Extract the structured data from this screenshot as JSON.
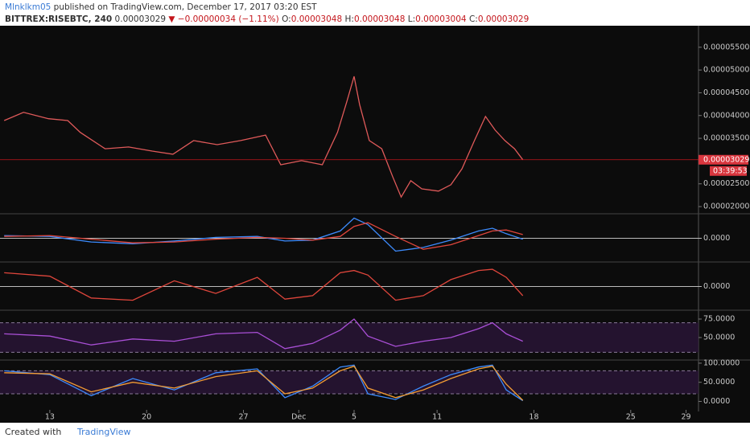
{
  "header": {
    "author": "Mlnklkm05",
    "published": "published on TradingView.com, December 17, 2017 03:20 EST",
    "symbol": "BITTREX:RISEBTC, 240",
    "price": "0.00003029",
    "change": "▼ −0.00000034 (−1.11%)",
    "ohlc": [
      {
        "label": "O:",
        "value": "0.00003048"
      },
      {
        "label": "H:",
        "value": "0.00003048"
      },
      {
        "label": "L:",
        "value": "0.00003004"
      },
      {
        "label": "C:",
        "value": "0.00003029"
      }
    ]
  },
  "chart_data": [
    {
      "type": "line",
      "color": "#e05a5a",
      "x": [
        -3.3,
        -1.9,
        -0.1,
        1.3,
        2.2,
        4.0,
        5.7,
        7.4,
        8.9,
        10.4,
        12.1,
        13.8,
        15.6,
        16.7,
        18.2,
        19.7,
        20.8,
        21.5,
        22.0,
        22.4,
        23.1,
        24.0,
        24.8,
        25.4,
        26.1,
        26.9,
        28.1,
        29.0,
        29.8,
        30.7,
        31.5,
        32.2,
        32.9,
        33.6,
        34.2
      ],
      "series": [
        {
          "color": "#e05a5a",
          "values": [
            3.89e-05,
            4.07e-05,
            3.93e-05,
            3.89e-05,
            3.63e-05,
            3.27e-05,
            3.31e-05,
            3.22e-05,
            3.15e-05,
            3.45e-05,
            3.36e-05,
            3.45e-05,
            3.57e-05,
            2.92e-05,
            3.01e-05,
            2.92e-05,
            3.63e-05,
            4.33e-05,
            4.86e-05,
            4.24e-05,
            3.45e-05,
            3.27e-05,
            2.65e-05,
            2.21e-05,
            2.57e-05,
            2.39e-05,
            2.34e-05,
            2.48e-05,
            2.83e-05,
            3.45e-05,
            3.98e-05,
            3.68e-05,
            3.45e-05,
            3.27e-05,
            3.029e-05
          ]
        }
      ],
      "last_price": {
        "value": 3.029e-05,
        "label": "0.00003029"
      },
      "timer": "03:39:53",
      "xlim": [
        -3.6,
        46.9
      ],
      "ylim": [
        1.86e-05,
        5.92e-05
      ],
      "xticks": [
        {
          "value": 0,
          "label": "13"
        },
        {
          "value": 7,
          "label": "20"
        },
        {
          "value": 14,
          "label": "27"
        },
        {
          "value": 18,
          "label": "Dec"
        },
        {
          "value": 22,
          "label": "5"
        },
        {
          "value": 28,
          "label": "11"
        },
        {
          "value": 35,
          "label": "18"
        },
        {
          "value": 42,
          "label": "25"
        },
        {
          "value": 46,
          "label": "29"
        }
      ],
      "yticks": [
        {
          "value": 2e-05,
          "label": "0.00002000"
        },
        {
          "value": 2.5e-05,
          "label": "0.00002500"
        },
        {
          "value": 3.5e-05,
          "label": "0.00003500"
        },
        {
          "value": 4e-05,
          "label": "0.00004000"
        },
        {
          "value": 4.5e-05,
          "label": "0.00004500"
        },
        {
          "value": 5e-05,
          "label": "0.00005000"
        },
        {
          "value": 5.5e-05,
          "label": "0.00005500"
        }
      ]
    },
    {
      "type": "line",
      "x": [
        -3.3,
        0,
        3,
        6,
        9,
        12,
        15,
        17,
        19,
        21,
        22,
        23,
        25,
        27,
        29,
        31,
        32,
        33,
        34.2
      ],
      "series": [
        {
          "color": "#3d8bfd",
          "values": [
            3e-07,
            2e-07,
            -4e-07,
            -6e-07,
            -3e-07,
            1e-07,
            2e-07,
            -3e-07,
            -2e-07,
            8e-07,
            2.2e-06,
            1.5e-06,
            -1.4e-06,
            -1e-06,
            -2e-07,
            8e-07,
            1.1e-06,
            5e-07,
            -1e-07
          ]
        },
        {
          "color": "#e0463c",
          "values": [
            2e-07,
            3e-07,
            -1e-07,
            -5e-07,
            -4e-07,
            -1e-07,
            1e-07,
            0,
            -2e-07,
            2e-07,
            1.3e-06,
            1.7e-06,
            2e-07,
            -1.2e-06,
            -7e-07,
            3e-07,
            8e-07,
            9e-07,
            4e-07
          ]
        }
      ],
      "ylim": [
        -2.5e-06,
        2.5e-06
      ],
      "yticks": [
        {
          "value": 0,
          "label": "0.0000"
        }
      ]
    },
    {
      "type": "line",
      "x": [
        -3.3,
        0,
        3,
        6,
        9,
        12,
        15,
        17,
        19,
        21,
        22,
        23,
        25,
        27,
        29,
        31,
        32,
        33,
        34.2
      ],
      "series": [
        {
          "color": "#e0463c",
          "values": [
            1.2e-06,
            9e-07,
            -1e-06,
            -1.2e-06,
            5e-07,
            -6e-07,
            8e-07,
            -1.1e-06,
            -8e-07,
            1.2e-06,
            1.4e-06,
            1e-06,
            -1.2e-06,
            -8e-07,
            6e-07,
            1.4e-06,
            1.5e-06,
            8e-07,
            -8e-07
          ]
        }
      ],
      "ylim": [
        -2e-06,
        2e-06
      ],
      "yticks": [
        {
          "value": 0,
          "label": "0.0000"
        }
      ]
    },
    {
      "type": "line",
      "x": [
        -3.3,
        0,
        3,
        6,
        9,
        12,
        15,
        17,
        19,
        21,
        22,
        23,
        25,
        27,
        29,
        31,
        32,
        33,
        34.2
      ],
      "series": [
        {
          "color": "#a94fd6",
          "values": [
            55,
            52,
            40,
            48,
            45,
            55,
            57,
            35,
            42,
            60,
            75,
            52,
            38,
            45,
            50,
            62,
            70,
            55,
            45
          ]
        }
      ],
      "bands": [
        30,
        70
      ],
      "ylim": [
        22.8,
        84.8
      ],
      "yticks": [
        {
          "value": 50,
          "label": "50.0000"
        },
        {
          "value": 75,
          "label": "75.0000"
        }
      ]
    },
    {
      "type": "line",
      "x": [
        -3.3,
        0,
        3,
        6,
        9,
        12,
        15,
        17,
        19,
        21,
        22,
        23,
        25,
        27,
        29,
        31,
        32,
        33,
        34.2
      ],
      "series": [
        {
          "color": "#3d8bfd",
          "values": [
            80,
            70,
            15,
            60,
            30,
            75,
            85,
            10,
            40,
            90,
            95,
            20,
            5,
            40,
            70,
            90,
            95,
            30,
            2
          ]
        },
        {
          "color": "#f39c34",
          "values": [
            75,
            72,
            25,
            50,
            35,
            65,
            80,
            20,
            35,
            80,
            92,
            35,
            10,
            30,
            60,
            85,
            92,
            45,
            3
          ]
        }
      ],
      "bands": [
        20,
        80
      ],
      "ylim": [
        -22,
        104
      ],
      "yticks": [
        {
          "value": 0,
          "label": "0.0000"
        },
        {
          "value": 50,
          "label": "50.0000"
        },
        {
          "value": 100,
          "label": "100.0000"
        }
      ]
    }
  ],
  "footer": {
    "created": "Created with",
    "brand": "TradingView"
  }
}
